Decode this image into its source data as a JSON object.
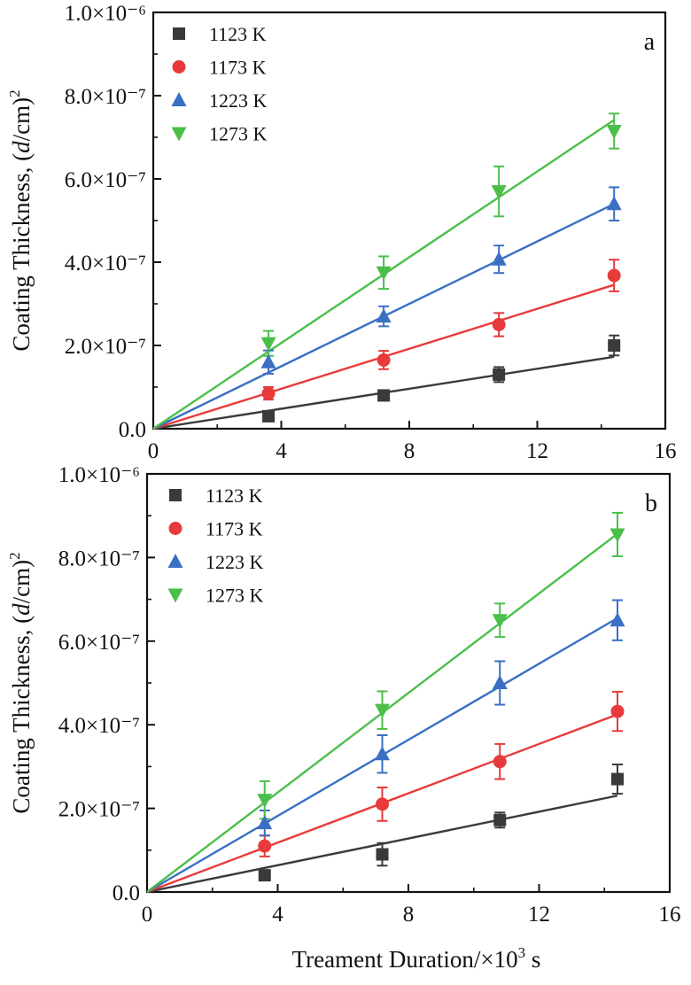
{
  "chart_data": [
    {
      "type": "scatter",
      "panel_label": "a",
      "ylabel": "Coating Thickness, (d/cm)²",
      "xlim": [
        0,
        16
      ],
      "ylim": [
        0,
        1e-06
      ],
      "x_ticks": [
        "0",
        "4",
        "8",
        "12",
        "16"
      ],
      "y_ticks": [
        "0.0",
        "2.0×10⁻⁷",
        "4.0×10⁻⁷",
        "6.0×10⁻⁷",
        "8.0×10⁻⁷",
        "1.0×10⁻⁶"
      ],
      "legend_position": "top-left",
      "x": [
        3.6,
        7.2,
        10.8,
        14.4
      ],
      "series": [
        {
          "name": "1123 K",
          "color": "#3a3a3a",
          "marker": "square",
          "values": [
            3e-08,
            8e-08,
            1.3e-07,
            2e-07
          ],
          "errors": [
            1e-08,
            1.2e-08,
            1.8e-08,
            2.4e-08
          ],
          "fit_slope": 1.2e-08
        },
        {
          "name": "1173 K",
          "color": "#e83a3a",
          "marker": "circle",
          "values": [
            8.5e-08,
            1.65e-07,
            2.5e-07,
            3.68e-07
          ],
          "errors": [
            1.5e-08,
            2.2e-08,
            2.8e-08,
            3.8e-08
          ],
          "fit_slope": 2.4e-08
        },
        {
          "name": "1223 K",
          "color": "#3a6fc4",
          "marker": "triangle-up",
          "values": [
            1.6e-07,
            2.7e-07,
            4.07e-07,
            5.4e-07
          ],
          "errors": [
            2.8e-08,
            2.4e-08,
            3.3e-08,
            4e-08
          ],
          "fit_slope": 3.75e-08
        },
        {
          "name": "1273 K",
          "color": "#4cbf4a",
          "marker": "triangle-down",
          "values": [
            2.05e-07,
            3.75e-07,
            5.7e-07,
            7.15e-07
          ],
          "errors": [
            3e-08,
            3.9e-08,
            6e-08,
            4.2e-08
          ],
          "fit_slope": 5.15e-08
        }
      ]
    },
    {
      "type": "scatter",
      "panel_label": "b",
      "ylabel": "Coating Thickness, (d/cm)²",
      "xlabel": "Treament Duration/×10³ s",
      "xlim": [
        0,
        16
      ],
      "ylim": [
        0,
        1e-06
      ],
      "x_ticks": [
        "0",
        "4",
        "8",
        "12",
        "16"
      ],
      "y_ticks": [
        "0.0",
        "2.0×10⁻⁷",
        "4.0×10⁻⁷",
        "6.0×10⁻⁷",
        "8.0×10⁻⁷",
        "1.0×10⁻⁶"
      ],
      "legend_position": "top-left",
      "x": [
        3.6,
        7.2,
        10.8,
        14.4
      ],
      "series": [
        {
          "name": "1123 K",
          "color": "#3a3a3a",
          "marker": "square",
          "values": [
            4e-08,
            9e-08,
            1.72e-07,
            2.7e-07
          ],
          "errors": [
            1.2e-08,
            2.7e-08,
            1.8e-08,
            3.5e-08
          ],
          "fit_slope": 1.6e-08
        },
        {
          "name": "1173 K",
          "color": "#e83a3a",
          "marker": "circle",
          "values": [
            1.1e-07,
            2.1e-07,
            3.12e-07,
            4.32e-07
          ],
          "errors": [
            2.5e-08,
            4e-08,
            4.2e-08,
            4.7e-08
          ],
          "fit_slope": 2.95e-08
        },
        {
          "name": "1223 K",
          "color": "#3a6fc4",
          "marker": "triangle-up",
          "values": [
            1.65e-07,
            3.3e-07,
            5e-07,
            6.5e-07
          ],
          "errors": [
            3e-08,
            4.5e-08,
            5.2e-08,
            4.8e-08
          ],
          "fit_slope": 4.55e-08
        },
        {
          "name": "1273 K",
          "color": "#4cbf4a",
          "marker": "triangle-down",
          "values": [
            2.2e-07,
            4.35e-07,
            6.5e-07,
            8.55e-07
          ],
          "errors": [
            4.5e-08,
            4.5e-08,
            4e-08,
            5.2e-08
          ],
          "fit_slope": 5.95e-08
        }
      ]
    }
  ]
}
